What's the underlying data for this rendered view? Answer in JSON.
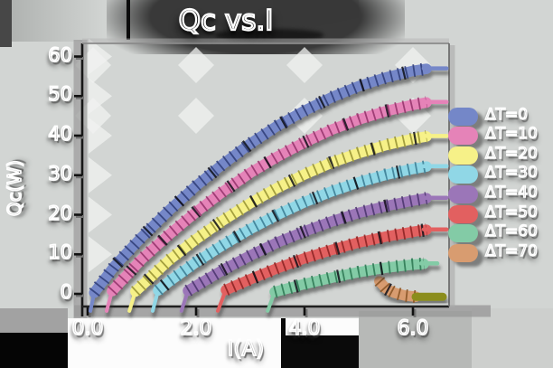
{
  "figure": {
    "background": "#d2d5d3",
    "text_color": "#ffffff",
    "shadow_color": "#3a3a3a"
  },
  "chart_data": {
    "type": "line",
    "title": "Qc vs.I",
    "xlabel": "I(A)",
    "ylabel": "Qc(W)",
    "x_axis": {
      "range": [
        -0.1,
        6.67
      ],
      "ticks": [
        {
          "v": 0,
          "label": "0.0"
        },
        {
          "v": 2,
          "label": "2.0"
        },
        {
          "v": 4,
          "label": "4.0"
        },
        {
          "v": 6,
          "label": "6.0"
        }
      ]
    },
    "y_axis": {
      "range": [
        -3.5,
        63.2
      ],
      "ticks": [
        {
          "v": 0,
          "label": "0"
        },
        {
          "v": 10,
          "label": "10"
        },
        {
          "v": 20,
          "label": "20"
        },
        {
          "v": 30,
          "label": "30"
        },
        {
          "v": 40,
          "label": "40"
        },
        {
          "v": 50,
          "label": "50"
        },
        {
          "v": 60,
          "label": "60"
        }
      ]
    },
    "legend_position": "right-outside",
    "grid": "chevron-artifacts",
    "draw_order": [
      0,
      1,
      2,
      3,
      4,
      5,
      7,
      6
    ],
    "series": [
      {
        "label": "ΔT=0",
        "color": "#7487c8",
        "tick_color": "#333f7a",
        "taper_start": true,
        "points": [
          [
            0.05,
            -4.3
          ],
          [
            0.12,
            0.3
          ],
          [
            0.5,
            7.1
          ],
          [
            1.0,
            14.4
          ],
          [
            1.5,
            21.1
          ],
          [
            2.0,
            27.3
          ],
          [
            2.5,
            32.9
          ],
          [
            3.0,
            38.0
          ],
          [
            3.5,
            42.5
          ],
          [
            4.0,
            46.3
          ],
          [
            4.5,
            49.7
          ],
          [
            5.0,
            52.5
          ],
          [
            5.5,
            54.7
          ],
          [
            6.0,
            56.4
          ],
          [
            6.25,
            56.9
          ]
        ],
        "stub": [
          6.2,
          6.62,
          57.0
        ]
      },
      {
        "label": "ΔT=10",
        "color": "#e583b8",
        "tick_color": "#97366e",
        "taper_start": true,
        "points": [
          [
            0.35,
            -4.3
          ],
          [
            0.45,
            0.7
          ],
          [
            1.0,
            8.8
          ],
          [
            1.5,
            15.0
          ],
          [
            2.0,
            20.7
          ],
          [
            2.5,
            25.9
          ],
          [
            3.0,
            30.6
          ],
          [
            3.5,
            34.7
          ],
          [
            4.0,
            38.3
          ],
          [
            4.5,
            41.5
          ],
          [
            5.0,
            44.1
          ],
          [
            5.5,
            46.2
          ],
          [
            6.0,
            47.8
          ],
          [
            6.25,
            48.4
          ]
        ],
        "stub": [
          6.2,
          6.62,
          48.5
        ]
      },
      {
        "label": "ΔT=20",
        "color": "#f6f188",
        "tick_color": "#9a9636",
        "taper_start": true,
        "points": [
          [
            0.77,
            -4.3
          ],
          [
            0.88,
            0.6
          ],
          [
            1.5,
            8.5
          ],
          [
            2.0,
            13.8
          ],
          [
            2.5,
            18.6
          ],
          [
            3.0,
            22.9
          ],
          [
            3.5,
            26.8
          ],
          [
            4.0,
            30.2
          ],
          [
            4.5,
            33.2
          ],
          [
            5.0,
            35.6
          ],
          [
            5.5,
            37.6
          ],
          [
            6.0,
            39.2
          ],
          [
            6.25,
            39.8
          ]
        ],
        "stub": [
          6.2,
          6.62,
          39.9
        ]
      },
      {
        "label": "ΔT=30",
        "color": "#90d7e6",
        "tick_color": "#3d7f96",
        "taper_start": true,
        "points": [
          [
            1.2,
            -4.3
          ],
          [
            1.3,
            0.9
          ],
          [
            1.5,
            3.1
          ],
          [
            2.0,
            8.0
          ],
          [
            2.5,
            12.4
          ],
          [
            3.0,
            16.4
          ],
          [
            3.5,
            20.0
          ],
          [
            4.0,
            23.2
          ],
          [
            4.5,
            25.9
          ],
          [
            5.0,
            28.2
          ],
          [
            5.5,
            30.1
          ],
          [
            6.0,
            31.6
          ],
          [
            6.25,
            32.2
          ]
        ],
        "stub": [
          6.2,
          6.62,
          32.3
        ]
      },
      {
        "label": "ΔT=40",
        "color": "#9b76b8",
        "tick_color": "#4e3670",
        "taper_start": true,
        "points": [
          [
            1.73,
            -4.3
          ],
          [
            1.85,
            0.8
          ],
          [
            2.5,
            6.1
          ],
          [
            3.0,
            9.7
          ],
          [
            3.5,
            13.0
          ],
          [
            4.0,
            15.8
          ],
          [
            4.5,
            18.3
          ],
          [
            5.0,
            20.5
          ],
          [
            5.5,
            22.2
          ],
          [
            6.0,
            23.6
          ],
          [
            6.25,
            24.2
          ]
        ],
        "stub": [
          6.2,
          6.62,
          24.3
        ]
      },
      {
        "label": "ΔT=50",
        "color": "#e26060",
        "tick_color": "#8f2626",
        "taper_start": true,
        "points": [
          [
            2.4,
            -4.3
          ],
          [
            2.55,
            1.0
          ],
          [
            3.0,
            3.7
          ],
          [
            3.5,
            6.5
          ],
          [
            4.0,
            9.0
          ],
          [
            4.5,
            11.1
          ],
          [
            5.0,
            13.0
          ],
          [
            5.5,
            14.5
          ],
          [
            6.0,
            15.7
          ],
          [
            6.25,
            16.2
          ]
        ],
        "stub": [
          6.2,
          6.62,
          16.3
        ]
      },
      {
        "label": "ΔT=60",
        "color": "#83cba6",
        "tick_color": "#2f7a55",
        "taper_start": true,
        "points": [
          [
            3.32,
            -4.3
          ],
          [
            3.45,
            0.5
          ],
          [
            4.0,
            2.5
          ],
          [
            4.5,
            4.1
          ],
          [
            5.0,
            5.5
          ],
          [
            5.5,
            6.6
          ],
          [
            6.0,
            7.4
          ],
          [
            6.2,
            7.6
          ]
        ],
        "stub": [
          6.15,
          6.45,
          7.7
        ]
      },
      {
        "label": "ΔT=70",
        "color": "#d89c70",
        "tick_color": "#8a5526",
        "taper_start": false,
        "points": [
          [
            5.38,
            3.2
          ],
          [
            5.5,
            1.4
          ],
          [
            5.65,
            0.3
          ],
          [
            5.85,
            -0.4
          ],
          [
            6.05,
            -0.7
          ]
        ],
        "stub": [
          6.05,
          6.55,
          -0.75
        ],
        "stub_color": "#8b8d1f",
        "stub_width": 9
      }
    ]
  }
}
